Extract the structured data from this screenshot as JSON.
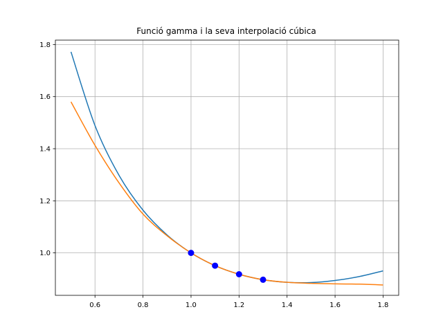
{
  "chart_data": {
    "type": "line",
    "title": "Funció gamma i la seva interpolació cúbica",
    "xlabel": "",
    "ylabel": "",
    "xlim": [
      0.435,
      1.865
    ],
    "ylim": [
      0.837,
      1.817
    ],
    "grid": true,
    "x_ticks": [
      0.6,
      0.8,
      1.0,
      1.2,
      1.4,
      1.6,
      1.8
    ],
    "x_tick_labels": [
      "0.6",
      "0.8",
      "1.0",
      "1.2",
      "1.4",
      "1.6",
      "1.8"
    ],
    "y_ticks": [
      1.0,
      1.2,
      1.4,
      1.6,
      1.8
    ],
    "y_tick_labels": [
      "1.0",
      "1.2",
      "1.4",
      "1.6",
      "1.8"
    ],
    "series": [
      {
        "color": "#1f77b4",
        "x": [
          0.5,
          0.6,
          0.7,
          0.8,
          0.9,
          1.0,
          1.1,
          1.2,
          1.3,
          1.4,
          1.5,
          1.6,
          1.7,
          1.8
        ],
        "y": [
          1.772,
          1.489,
          1.298,
          1.164,
          1.069,
          1.0,
          0.951,
          0.918,
          0.897,
          0.887,
          0.886,
          0.894,
          0.909,
          0.931
        ]
      },
      {
        "color": "#ff7f0e",
        "x": [
          0.5,
          0.6,
          0.7,
          0.8,
          0.9,
          1.0,
          1.1,
          1.2,
          1.3,
          1.4,
          1.5,
          1.6,
          1.7,
          1.8
        ],
        "y": [
          1.58,
          1.413,
          1.269,
          1.149,
          1.066,
          1.0,
          0.951,
          0.918,
          0.897,
          0.887,
          0.883,
          0.881,
          0.88,
          0.877
        ]
      }
    ],
    "points": {
      "color": "#0000ff",
      "x": [
        1.0,
        1.1,
        1.2,
        1.3
      ],
      "y": [
        1.0,
        0.951,
        0.918,
        0.897
      ]
    }
  }
}
